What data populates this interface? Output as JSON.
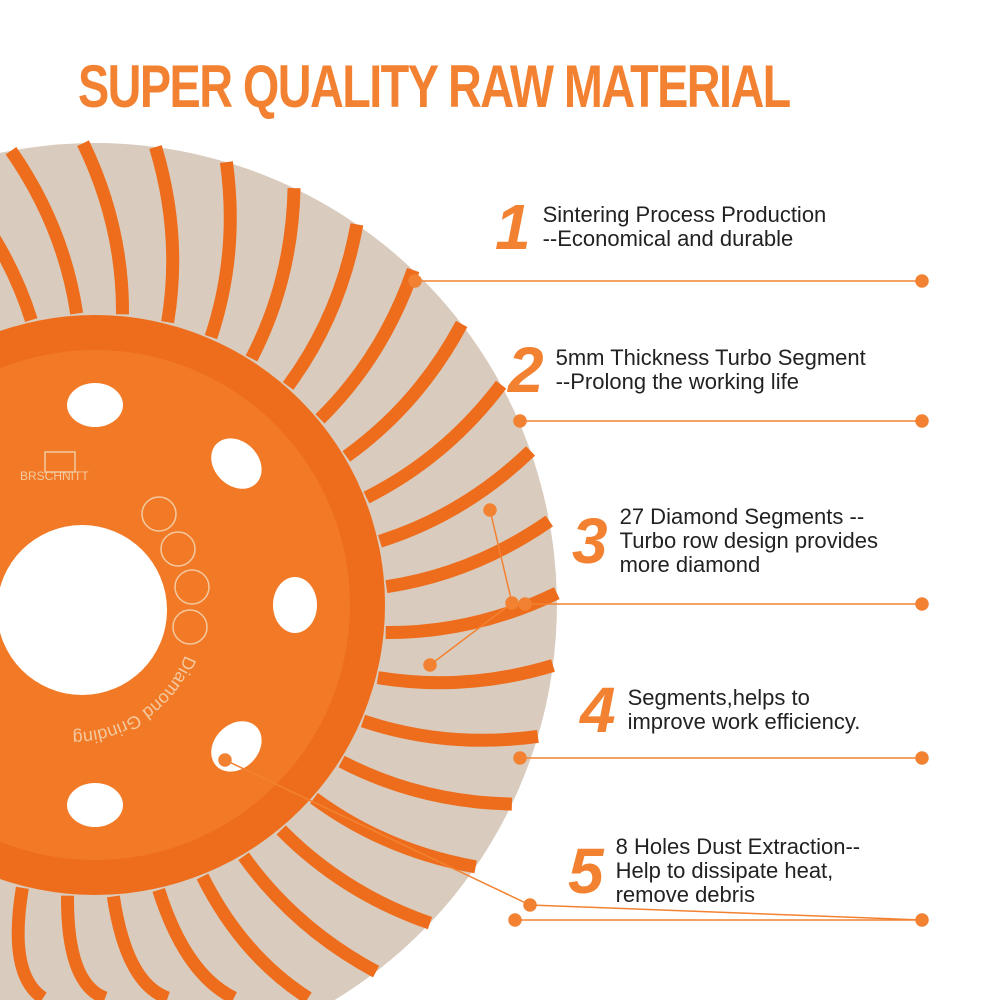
{
  "title": "SUPER QUALITY RAW MATERIAL",
  "brand": {
    "logo_text": "BRSCHNITT",
    "ring_text": "Diamond Grinding"
  },
  "colors": {
    "accent": "#f28232",
    "hub": "#f07020",
    "steel": "#d9cbbd"
  },
  "features": [
    {
      "number": "1",
      "lines": [
        "Sintering Process Production",
        "--Economical and durable"
      ]
    },
    {
      "number": "2",
      "lines": [
        "5mm Thickness Turbo Segment",
        "--Prolong the working life"
      ]
    },
    {
      "number": "3",
      "lines": [
        "27 Diamond Segments --",
        "Turbo row design provides",
        "more diamond"
      ]
    },
    {
      "number": "4",
      "lines": [
        "Segments,helps to",
        "improve work efficiency."
      ]
    },
    {
      "number": "5",
      "lines": [
        "8 Holes Dust Extraction--",
        "Help to dissipate heat,",
        "remove debris"
      ]
    }
  ]
}
